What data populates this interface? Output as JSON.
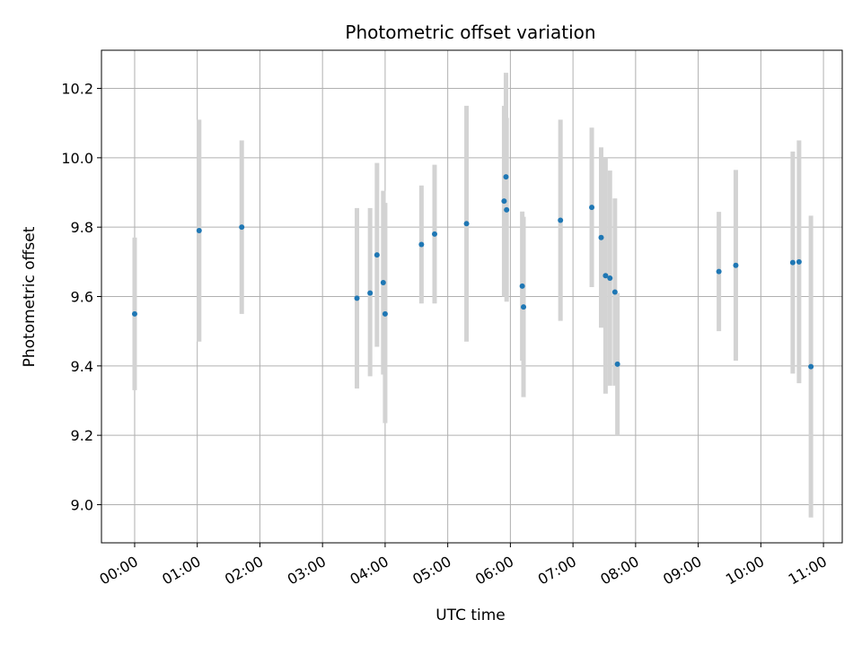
{
  "chart_data": {
    "type": "scatter",
    "title": "Photometric offset variation",
    "xlabel": "UTC time",
    "ylabel": "Photometric offset",
    "x_unit": "hours UTC",
    "xlim": [
      -0.53,
      11.3
    ],
    "ylim": [
      8.89,
      10.31
    ],
    "grid": true,
    "x_tick_labels": [
      "00:00",
      "01:00",
      "02:00",
      "03:00",
      "04:00",
      "05:00",
      "06:00",
      "07:00",
      "08:00",
      "09:00",
      "10:00",
      "11:00"
    ],
    "y_tick_labels": [
      "9.0",
      "9.2",
      "9.4",
      "9.6",
      "9.8",
      "10.0",
      "10.2"
    ],
    "colors": {
      "point": "#1f77b4",
      "errorbar": "#d3d3d3",
      "grid": "#b0b0b0"
    },
    "points": [
      {
        "x": 0.0,
        "y": 9.55,
        "ylo": 9.33,
        "yhi": 9.77
      },
      {
        "x": 1.03,
        "y": 9.79,
        "ylo": 9.47,
        "yhi": 10.11
      },
      {
        "x": 1.71,
        "y": 9.8,
        "ylo": 9.55,
        "yhi": 10.05
      },
      {
        "x": 3.55,
        "y": 9.595,
        "ylo": 9.335,
        "yhi": 9.855
      },
      {
        "x": 3.76,
        "y": 9.61,
        "ylo": 9.37,
        "yhi": 9.855
      },
      {
        "x": 3.87,
        "y": 9.72,
        "ylo": 9.455,
        "yhi": 9.985
      },
      {
        "x": 3.97,
        "y": 9.64,
        "ylo": 9.375,
        "yhi": 9.905
      },
      {
        "x": 4.0,
        "y": 9.55,
        "ylo": 9.235,
        "yhi": 9.87
      },
      {
        "x": 4.58,
        "y": 9.75,
        "ylo": 9.58,
        "yhi": 9.92
      },
      {
        "x": 4.79,
        "y": 9.78,
        "ylo": 9.58,
        "yhi": 9.98
      },
      {
        "x": 5.3,
        "y": 9.81,
        "ylo": 9.47,
        "yhi": 10.15
      },
      {
        "x": 5.9,
        "y": 9.875,
        "ylo": 9.6,
        "yhi": 10.15
      },
      {
        "x": 5.93,
        "y": 9.945,
        "ylo": 9.645,
        "yhi": 10.245
      },
      {
        "x": 5.94,
        "y": 9.85,
        "ylo": 9.585,
        "yhi": 10.115
      },
      {
        "x": 6.19,
        "y": 9.63,
        "ylo": 9.415,
        "yhi": 9.845
      },
      {
        "x": 6.21,
        "y": 9.57,
        "ylo": 9.31,
        "yhi": 9.83
      },
      {
        "x": 6.8,
        "y": 9.82,
        "ylo": 9.53,
        "yhi": 10.11
      },
      {
        "x": 7.3,
        "y": 9.857,
        "ylo": 9.627,
        "yhi": 10.087
      },
      {
        "x": 7.45,
        "y": 9.77,
        "ylo": 9.51,
        "yhi": 10.03
      },
      {
        "x": 7.52,
        "y": 9.66,
        "ylo": 9.32,
        "yhi": 10.0
      },
      {
        "x": 7.59,
        "y": 9.653,
        "ylo": 9.343,
        "yhi": 9.963
      },
      {
        "x": 7.67,
        "y": 9.613,
        "ylo": 9.343,
        "yhi": 9.883
      },
      {
        "x": 7.71,
        "y": 9.405,
        "ylo": 9.2,
        "yhi": 9.61
      },
      {
        "x": 9.33,
        "y": 9.672,
        "ylo": 9.5,
        "yhi": 9.844
      },
      {
        "x": 9.6,
        "y": 9.69,
        "ylo": 9.415,
        "yhi": 9.965
      },
      {
        "x": 10.51,
        "y": 9.698,
        "ylo": 9.378,
        "yhi": 10.018
      },
      {
        "x": 10.61,
        "y": 9.7,
        "ylo": 9.35,
        "yhi": 10.05
      },
      {
        "x": 10.8,
        "y": 9.398,
        "ylo": 8.963,
        "yhi": 9.833
      }
    ]
  }
}
